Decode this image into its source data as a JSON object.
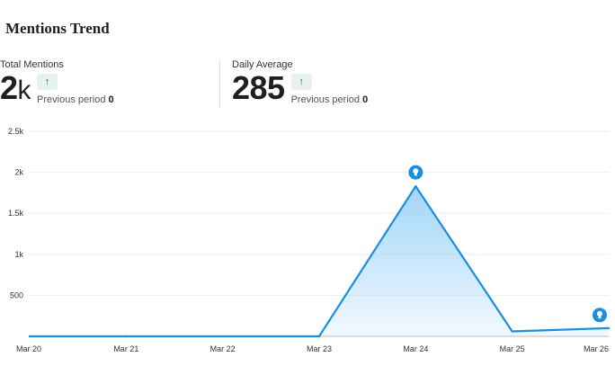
{
  "page": {
    "title": "Mentions Trend"
  },
  "metrics": [
    {
      "label": "Total Mentions",
      "value": "2",
      "unit": "k",
      "prev_label": "Previous period",
      "prev_value": "0",
      "trend_icon": "arrow-up-icon"
    },
    {
      "label": "Daily Average",
      "value": "285",
      "unit": "",
      "prev_label": "Previous period",
      "prev_value": "0",
      "trend_icon": "arrow-up-icon"
    }
  ],
  "chart_data": {
    "type": "area",
    "x": [
      "Mar 20",
      "Mar 21",
      "Mar 22",
      "Mar 23",
      "Mar 24",
      "Mar 25",
      "Mar 26"
    ],
    "series": [
      {
        "values": [
          0,
          0,
          0,
          0,
          1830,
          60,
          100
        ]
      }
    ],
    "yticks": [
      "2.5k",
      "2k",
      "1.5k",
      "1k",
      "500"
    ],
    "ytick_values": [
      2500,
      2000,
      1500,
      1000,
      500
    ],
    "ylim": [
      0,
      2500
    ],
    "grid": true,
    "line_color": "#1a8fe0",
    "fill_color": "#9ed3f7",
    "marker_color": "#1a8fe0",
    "markers": [
      {
        "x": "Mar 24",
        "y": 2000,
        "icon": "lightbulb-icon"
      },
      {
        "x": "Mar 26",
        "y": 260,
        "icon": "lightbulb-icon"
      }
    ]
  }
}
